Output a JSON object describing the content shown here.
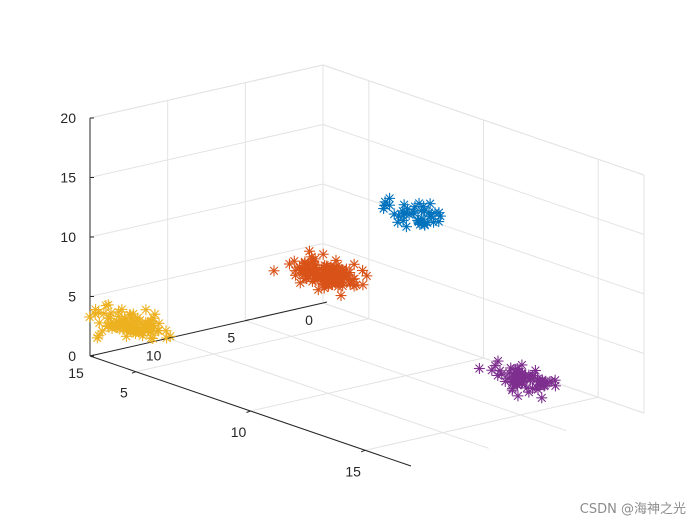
{
  "chart_data": {
    "type": "scatter",
    "projection": "3d",
    "title": "",
    "xlabel": "",
    "ylabel": "",
    "zlabel": "",
    "xlim": [
      3,
      17
    ],
    "ylim": [
      0,
      15
    ],
    "zlim": [
      0,
      20
    ],
    "x_ticks": [
      "5",
      "10",
      "15"
    ],
    "y_ticks": [
      "0",
      "5",
      "10",
      "15"
    ],
    "z_ticks": [
      "0",
      "5",
      "10",
      "15",
      "20"
    ],
    "grid": true,
    "marker": "*",
    "series": [
      {
        "color": "#0072BD",
        "center": [
          15,
          12,
          19
        ],
        "spread": [
          1.2,
          1.2,
          0.7
        ],
        "count": 40
      },
      {
        "color": "#D95319",
        "center": [
          10,
          10,
          10
        ],
        "spread": [
          1.3,
          1.3,
          0.9
        ],
        "count": 140
      },
      {
        "color": "#EDB120",
        "center": [
          4,
          14,
          3
        ],
        "spread": [
          1.3,
          1.3,
          0.8
        ],
        "count": 100
      },
      {
        "color": "#7E2F8E",
        "center": [
          15,
          5,
          3
        ],
        "spread": [
          1.2,
          1.2,
          0.8
        ],
        "count": 70
      }
    ]
  },
  "watermark": "CSDN @海神之光"
}
